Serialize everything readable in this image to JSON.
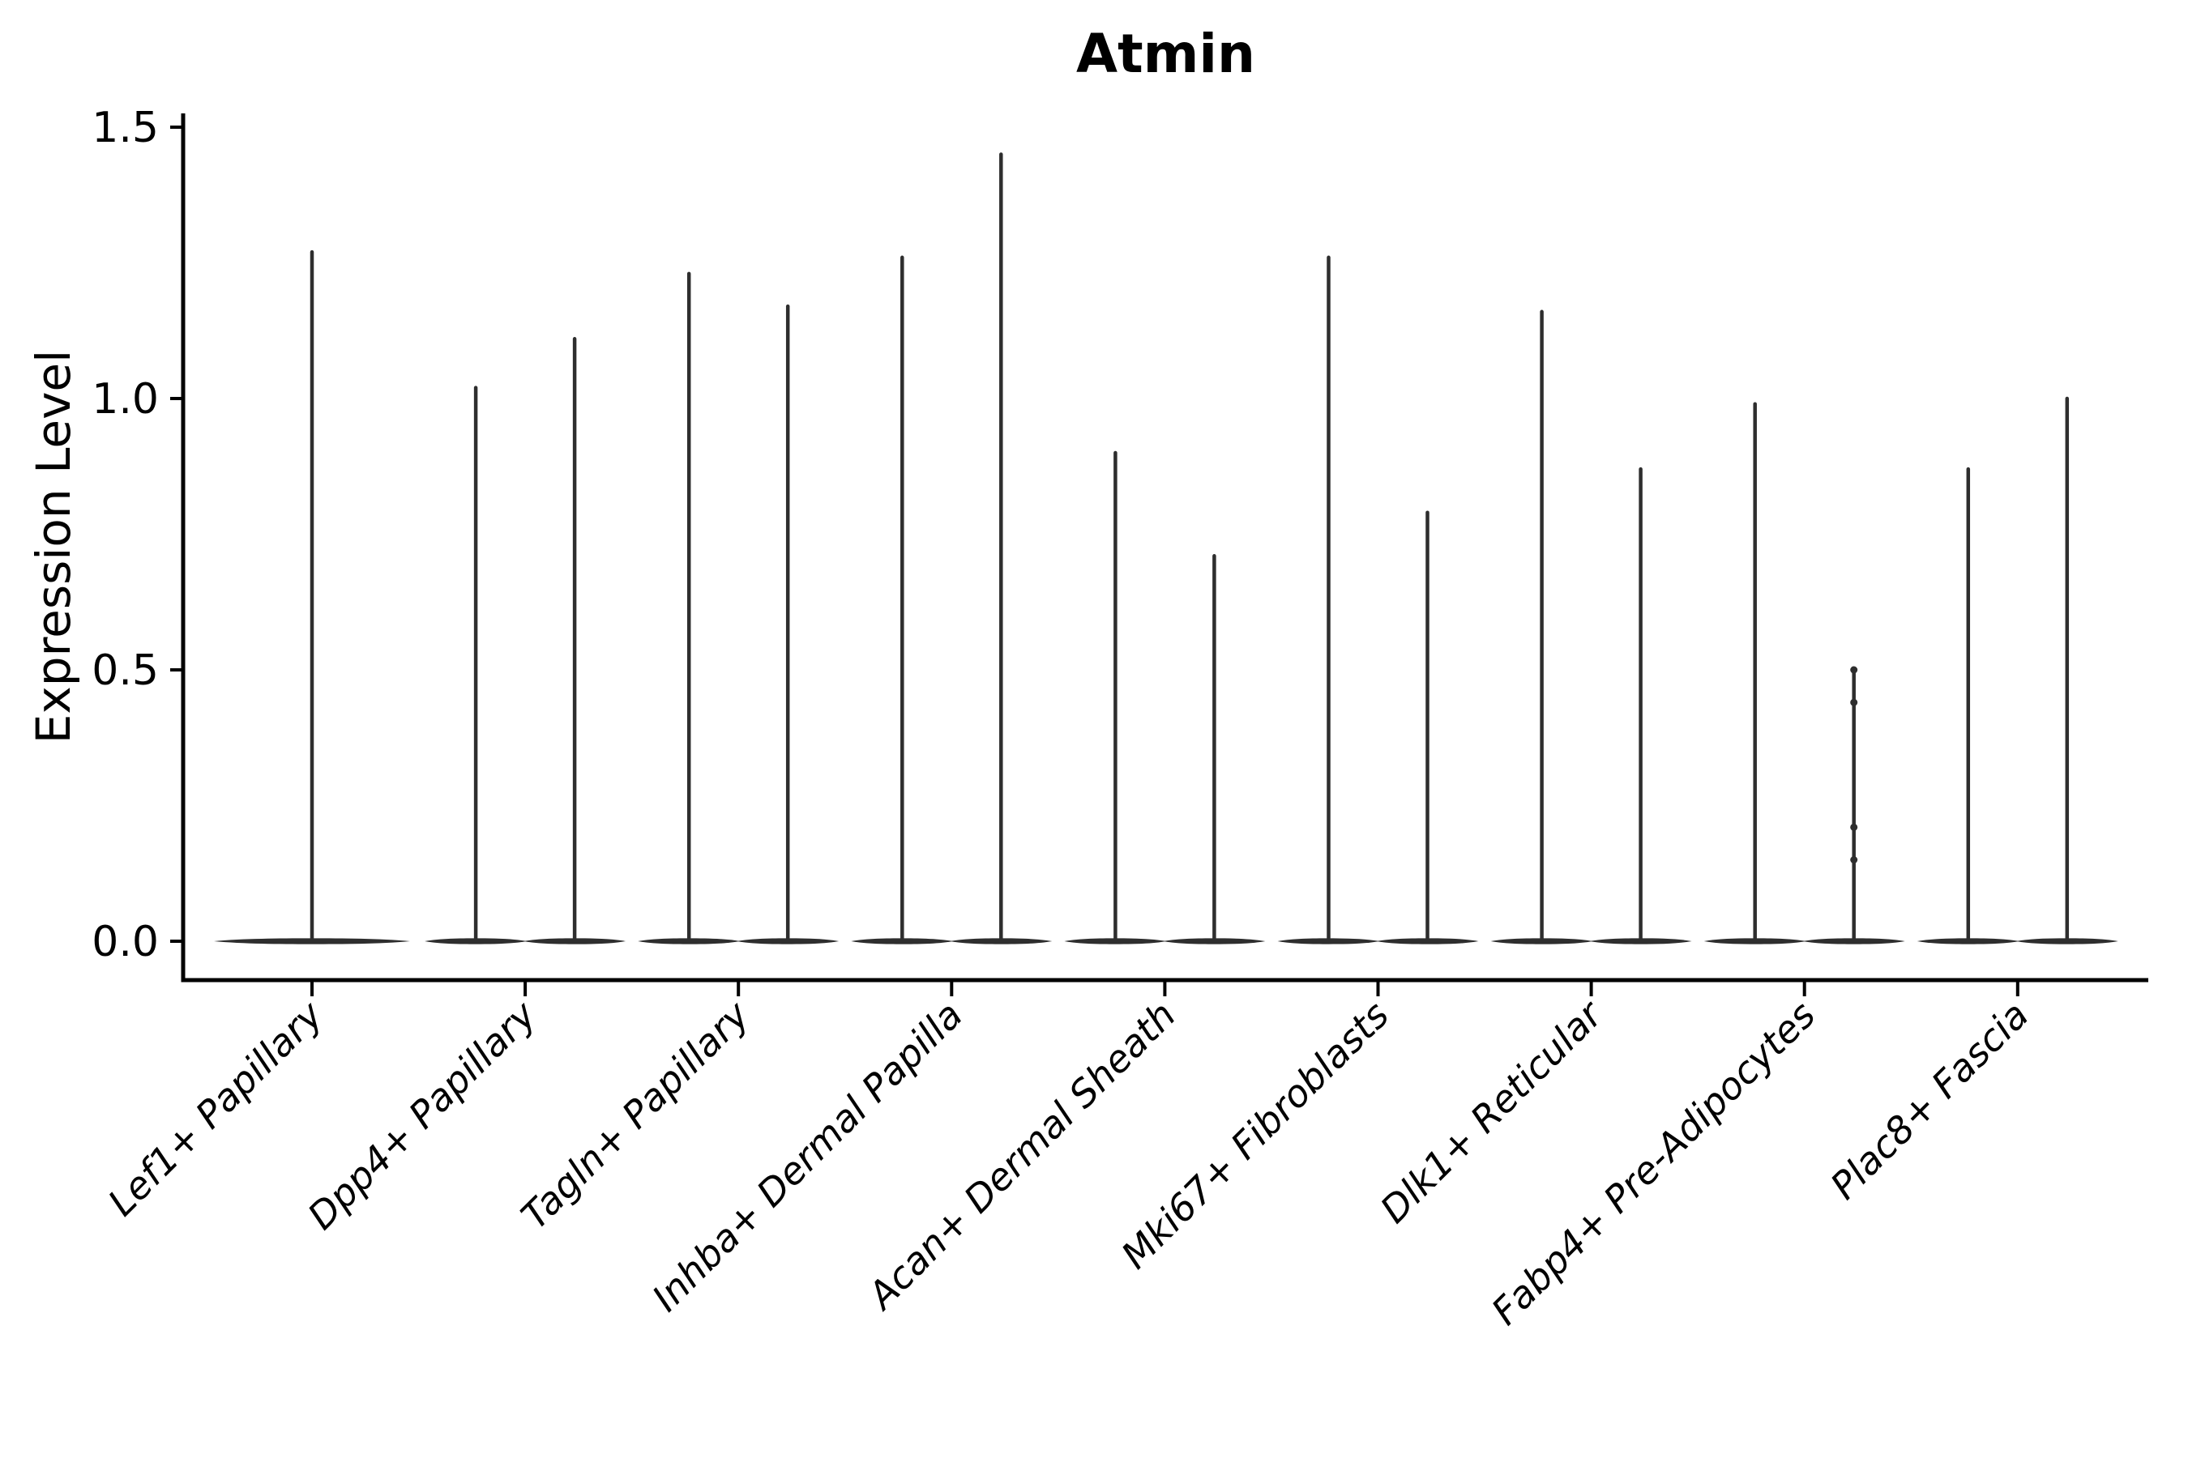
{
  "chart_data": {
    "type": "violin",
    "title": "Atmin",
    "ylabel": "Expression Level",
    "xlabel": "",
    "grid": false,
    "legend": "none",
    "background": "#ffffff",
    "violin_color": "#2e2e2e",
    "axis_color": "#000000",
    "ylim": [
      -0.07,
      1.53
    ],
    "ytick_values": [
      0.0,
      0.5,
      1.0,
      1.5
    ],
    "ytick_labels": [
      "0.0",
      "0.5",
      "1.0",
      "1.5"
    ],
    "categories": [
      "Lef1+ Papillary",
      "Dpp4+ Papillary",
      "Tagln+ Papillary",
      "Inhba+ Dermal Papilla",
      "Acan+ Dermal Sheath",
      "Mki67+ Fibroblasts",
      "Dlk1+ Reticular",
      "Fabp4+ Pre-Adipocytes",
      "Plac8+ Fascia"
    ],
    "series": [
      {
        "category": "Lef1+ Papillary",
        "violins": [
          1.27
        ]
      },
      {
        "category": "Dpp4+ Papillary",
        "violins": [
          1.02,
          1.11
        ]
      },
      {
        "category": "Tagln+ Papillary",
        "violins": [
          1.23,
          1.17
        ]
      },
      {
        "category": "Inhba+ Dermal Papilla",
        "violins": [
          1.26,
          1.45
        ]
      },
      {
        "category": "Acan+ Dermal Sheath",
        "violins": [
          0.9,
          0.71
        ]
      },
      {
        "category": "Mki67+ Fibroblasts",
        "violins": [
          1.26,
          0.79
        ]
      },
      {
        "category": "Dlk1+ Reticular",
        "violins": [
          1.16,
          0.87
        ]
      },
      {
        "category": "Fabp4+ Pre-Adipocytes",
        "violins": [
          0.99,
          0.5
        ],
        "dots": {
          "violin_index": 1,
          "values": [
            0.5,
            0.44,
            0.21,
            0.15
          ]
        }
      },
      {
        "category": "Plac8+ Fascia",
        "violins": [
          0.87,
          1.0
        ]
      }
    ],
    "baseline_value": 0.0
  }
}
